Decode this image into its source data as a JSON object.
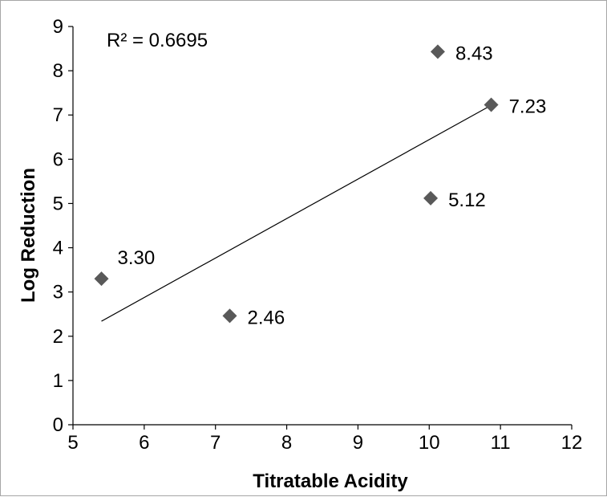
{
  "chart_data": {
    "type": "scatter",
    "title": "",
    "xlabel": "Titratable Acidity",
    "ylabel": "Log Reduction",
    "xlim": [
      5,
      12
    ],
    "ylim": [
      0,
      9
    ],
    "x_ticks": [
      "5",
      "6",
      "7",
      "8",
      "9",
      "10",
      "11",
      "12"
    ],
    "y_ticks": [
      "0",
      "1",
      "2",
      "3",
      "4",
      "5",
      "6",
      "7",
      "8",
      "9"
    ],
    "grid": false,
    "legend": "none",
    "marker_color": "#595959",
    "series": [
      {
        "points": [
          {
            "x": 5.4,
            "y": 3.3,
            "label": "3.30"
          },
          {
            "x": 7.2,
            "y": 2.46,
            "label": "2.46"
          },
          {
            "x": 10.02,
            "y": 5.12,
            "label": "5.12"
          },
          {
            "x": 10.12,
            "y": 8.43,
            "label": "8.43"
          },
          {
            "x": 10.87,
            "y": 7.23,
            "label": "7.23"
          }
        ]
      }
    ],
    "trendline": {
      "type": "linear",
      "x_start": 5.4,
      "x_end": 10.87,
      "y_start": 2.34,
      "y_end": 7.22,
      "color": "#000000",
      "r_squared_label": "R² = 0.6695"
    }
  }
}
